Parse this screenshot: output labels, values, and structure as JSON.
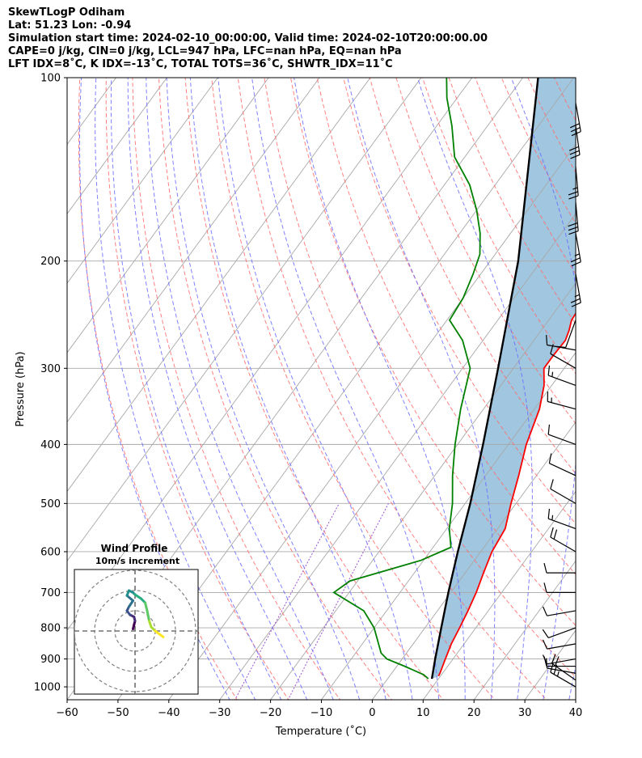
{
  "header": {
    "title": "SkewTLogP Odiham",
    "location": "Lat: 51.23   Lon: -0.94",
    "times": "Simulation start time: 2024-02-10_00:00:00, Valid time: 2024-02-10T20:00:00.00",
    "indices1": "CAPE=0 j/kg, CIN=0 j/kg, LCL=947 hPa, LFC=nan hPa, EQ=nan hPa",
    "indices2": "LFT IDX=8˚C, K IDX=-13˚C, TOTAL TOTS=36˚C, SHWTR_IDX=11˚C"
  },
  "chart_data": [
    {
      "type": "line",
      "subtype": "skew-t log-p",
      "xlabel": "Temperature (˚C)",
      "ylabel": "Pressure (hPa)",
      "xlim": [
        -60,
        40
      ],
      "ylim": [
        1050,
        100
      ],
      "y_scale": "log",
      "x_ticks": [
        "−60",
        "−50",
        "−40",
        "−30",
        "−20",
        "−10",
        "0",
        "10",
        "20",
        "30",
        "40"
      ],
      "y_ticks": [
        "100",
        "200",
        "300",
        "400",
        "500",
        "600",
        "700",
        "800",
        "900",
        "1000"
      ],
      "grid": true,
      "colors": {
        "temperature": "#ff0000",
        "dewpoint": "#008000",
        "parcel": "#000000",
        "fill": "#a0c6e0",
        "dry_adiabat": "#ff6b6b",
        "moist_adiabat": "#6b6bff",
        "isotherm": "#a8a8a8",
        "mixing_ratio": "#9b4fd0"
      },
      "series": [
        {
          "role": "temperature",
          "points": [
            [
              9.6,
              960
            ],
            [
              9.5,
              950
            ],
            [
              8.5,
              900
            ],
            [
              7.5,
              850
            ],
            [
              6.8,
              800
            ],
            [
              6.0,
              750
            ],
            [
              5.0,
              700
            ],
            [
              3.6,
              650
            ],
            [
              2.2,
              600
            ],
            [
              1.5,
              550
            ],
            [
              -1.0,
              500
            ],
            [
              -3.5,
              450
            ],
            [
              -6.5,
              400
            ],
            [
              -9.0,
              350
            ],
            [
              -11.5,
              320
            ],
            [
              -14.0,
              300
            ],
            [
              -14.0,
              285
            ],
            [
              -13.8,
              270
            ],
            [
              -14.5,
              260
            ],
            [
              -15.5,
              250
            ],
            [
              -16.0,
              230
            ],
            [
              -17.0,
              215
            ],
            [
              -18.0,
              200
            ],
            [
              -19.5,
              185
            ],
            [
              -20.5,
              175
            ],
            [
              -21.5,
              165
            ],
            [
              -23.0,
              155
            ],
            [
              -25.5,
              145
            ],
            [
              -27.5,
              135
            ],
            [
              -29.5,
              125
            ],
            [
              -32.5,
              115
            ],
            [
              -35.0,
              108
            ],
            [
              -36.5,
              100
            ]
          ]
        },
        {
          "role": "dewpoint",
          "points": [
            [
              8.0,
              970
            ],
            [
              6.5,
              955
            ],
            [
              1.5,
              925
            ],
            [
              -3.0,
              900
            ],
            [
              -5.0,
              880
            ],
            [
              -10.0,
              800
            ],
            [
              -14.5,
              750
            ],
            [
              -23.0,
              700
            ],
            [
              -21.5,
              670
            ],
            [
              -10.5,
              620
            ],
            [
              -6.5,
              590
            ],
            [
              -9.5,
              550
            ],
            [
              -12.5,
              500
            ],
            [
              -16.5,
              450
            ],
            [
              -20.5,
              400
            ],
            [
              -24.5,
              350
            ],
            [
              -28.5,
              300
            ],
            [
              -34.0,
              270
            ],
            [
              -39.5,
              250
            ],
            [
              -40.0,
              230
            ],
            [
              -41.5,
              210
            ],
            [
              -43.0,
              195
            ],
            [
              -46.0,
              180
            ],
            [
              -50.0,
              165
            ],
            [
              -55.0,
              150
            ],
            [
              -62.0,
              135
            ],
            [
              -67.0,
              120
            ],
            [
              -72.0,
              108
            ],
            [
              -75.0,
              100
            ]
          ]
        },
        {
          "role": "parcel",
          "points": [
            [
              8.7,
              970
            ],
            [
              6.5,
              900
            ],
            [
              3.2,
              800
            ],
            [
              -0.5,
              700
            ],
            [
              -4.5,
              600
            ],
            [
              -9.0,
              500
            ],
            [
              -15.0,
              400
            ],
            [
              -23.0,
              300
            ],
            [
              -34.5,
              200
            ],
            [
              -57.0,
              100
            ]
          ]
        }
      ],
      "annotations": [
        "Wind Profile",
        "10m/s increment"
      ],
      "wind_barbs": [
        {
          "p": 1000,
          "speed": 25,
          "dir": 300
        },
        {
          "p": 975,
          "speed": 20,
          "dir": 305
        },
        {
          "p": 950,
          "speed": 10,
          "dir": 280
        },
        {
          "p": 925,
          "speed": 10,
          "dir": 270
        },
        {
          "p": 900,
          "speed": 10,
          "dir": 260
        },
        {
          "p": 850,
          "speed": 10,
          "dir": 260
        },
        {
          "p": 800,
          "speed": 10,
          "dir": 250
        },
        {
          "p": 750,
          "speed": 10,
          "dir": 260
        },
        {
          "p": 700,
          "speed": 10,
          "dir": 270
        },
        {
          "p": 650,
          "speed": 10,
          "dir": 270
        },
        {
          "p": 600,
          "speed": 20,
          "dir": 300
        },
        {
          "p": 550,
          "speed": 15,
          "dir": 290
        },
        {
          "p": 500,
          "speed": 10,
          "dir": 300
        },
        {
          "p": 450,
          "speed": 10,
          "dir": 295
        },
        {
          "p": 400,
          "speed": 10,
          "dir": 290
        },
        {
          "p": 350,
          "speed": 15,
          "dir": 285
        },
        {
          "p": 320,
          "speed": 15,
          "dir": 290
        },
        {
          "p": 300,
          "speed": 10,
          "dir": 300
        },
        {
          "p": 280,
          "speed": 10,
          "dir": 280
        },
        {
          "p": 250,
          "speed": 10,
          "dir": 200
        },
        {
          "p": 210,
          "speed": 25,
          "dir": 170
        },
        {
          "p": 180,
          "speed": 25,
          "dir": 170
        },
        {
          "p": 160,
          "speed": 30,
          "dir": 175
        },
        {
          "p": 140,
          "speed": 25,
          "dir": 175
        },
        {
          "p": 120,
          "speed": 30,
          "dir": 172
        },
        {
          "p": 110,
          "speed": 30,
          "dir": 170
        }
      ]
    },
    {
      "type": "line",
      "subtype": "hodograph",
      "title": "Wind Profile",
      "subtitle": "10m/s increment",
      "rings_ms": [
        10,
        20,
        30
      ],
      "colormap": "viridis",
      "points": [
        [
          -1.0,
          1.0
        ],
        [
          -0.5,
          3.0
        ],
        [
          0.0,
          5.0
        ],
        [
          -0.5,
          7.0
        ],
        [
          -2.5,
          8.0
        ],
        [
          -4.0,
          10.0
        ],
        [
          -3.0,
          12.0
        ],
        [
          -1.0,
          15.0
        ],
        [
          -4.0,
          17.5
        ],
        [
          -3.0,
          20.0
        ],
        [
          -1.0,
          19.0
        ],
        [
          0.0,
          18.0
        ],
        [
          3.0,
          16.0
        ],
        [
          5.0,
          14.0
        ],
        [
          6.0,
          10.0
        ],
        [
          7.0,
          5.0
        ],
        [
          8.0,
          2.0
        ],
        [
          10.0,
          0.0
        ],
        [
          12.0,
          -1.5
        ],
        [
          14.0,
          -3.0
        ]
      ]
    }
  ]
}
